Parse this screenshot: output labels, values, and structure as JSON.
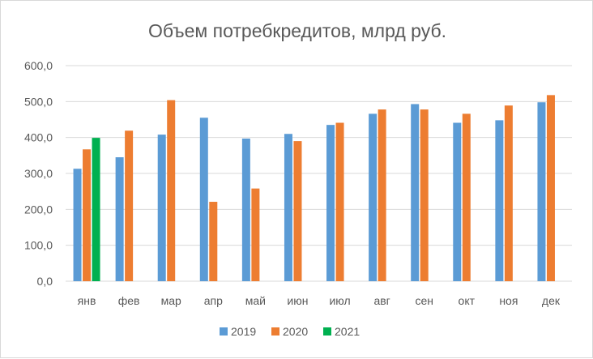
{
  "chart_data": {
    "type": "bar",
    "title": "Объем потребкредитов, млрд руб.",
    "categories": [
      "янв",
      "фев",
      "мар",
      "апр",
      "май",
      "июн",
      "июл",
      "авг",
      "сен",
      "окт",
      "ноя",
      "дек"
    ],
    "series": [
      {
        "name": "2019",
        "color": "#5b9bd5",
        "values": [
          313,
          345,
          408,
          455,
          397,
          410,
          435,
          466,
          493,
          441,
          448,
          498
        ]
      },
      {
        "name": "2020",
        "color": "#ed7d31",
        "values": [
          367,
          419,
          504,
          221,
          258,
          390,
          441,
          478,
          478,
          466,
          489,
          518
        ]
      },
      {
        "name": "2021",
        "color": "#00b050",
        "values": [
          399,
          null,
          null,
          null,
          null,
          null,
          null,
          null,
          null,
          null,
          null,
          null
        ]
      }
    ],
    "ylim": [
      0,
      600
    ],
    "yticks": [
      "0,0",
      "100,0",
      "200,0",
      "300,0",
      "400,0",
      "500,0",
      "600,0"
    ],
    "ytick_values": [
      0,
      100,
      200,
      300,
      400,
      500,
      600
    ],
    "grid": true,
    "legend": "bottom"
  }
}
